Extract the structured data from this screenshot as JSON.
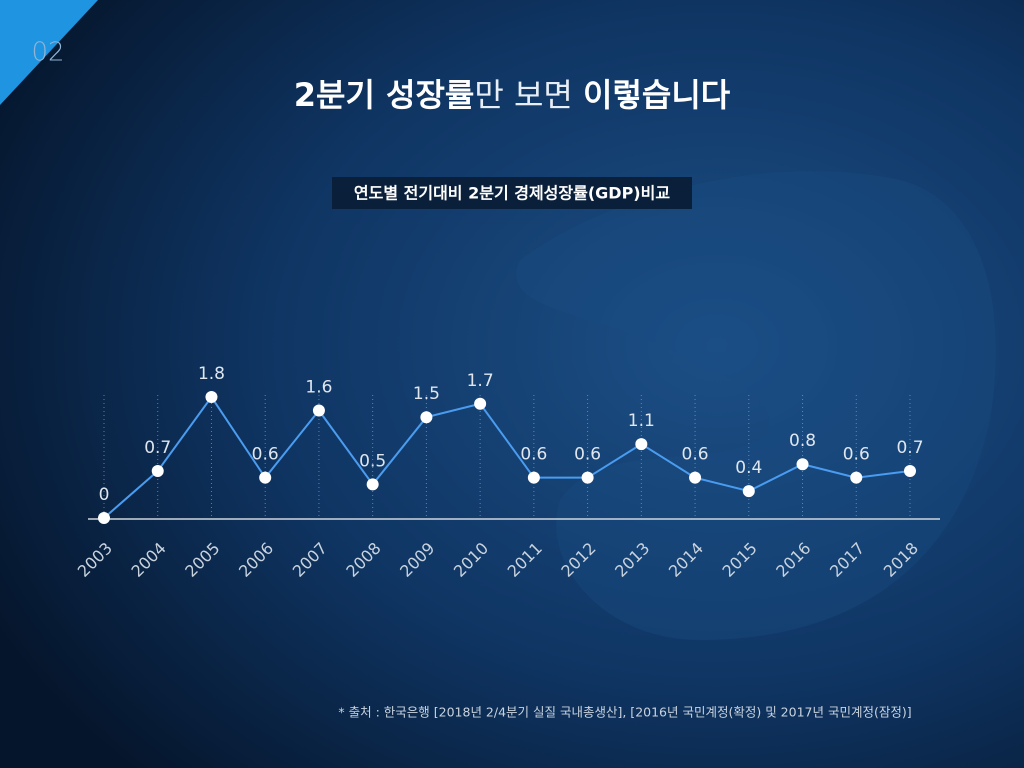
{
  "page_number": "02",
  "title_parts": [
    "2분기 성장률",
    "만 보면 ",
    "이렇습니다"
  ],
  "source": "* 출처 : 한국은행 [2018년 2/4분기 실질 국내총생산], [2016년 국민계정(확정) 및 2017년 국민계정(잠정)]",
  "chart_data": {
    "type": "line",
    "title": "연도별 전기대비 2분기 경제성장률(GDP)비교",
    "categories": [
      "2003",
      "2004",
      "2005",
      "2006",
      "2007",
      "2008",
      "2009",
      "2010",
      "2011",
      "2012",
      "2013",
      "2014",
      "2015",
      "2016",
      "2017",
      "2018"
    ],
    "series": [
      {
        "name": "2분기 경제성장률",
        "color": "#4a9cf0",
        "values": [
          0,
          0.7,
          1.8,
          0.6,
          1.6,
          0.5,
          1.5,
          1.7,
          0.6,
          0.6,
          1.1,
          0.6,
          0.4,
          0.8,
          0.6,
          0.7
        ]
      }
    ]
  }
}
